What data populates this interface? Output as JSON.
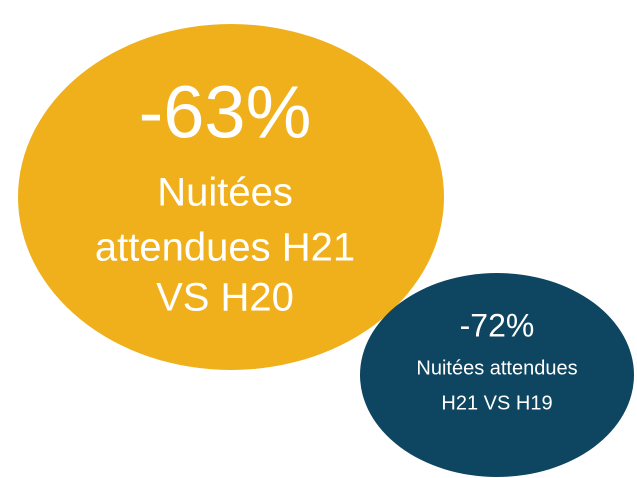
{
  "bubbles": [
    {
      "figure": "-63%",
      "lines": [
        "Nuitées",
        "attendues H21",
        "VS H20"
      ]
    },
    {
      "figure": "-72%",
      "lines": [
        "Nuitées attendues",
        "H21 VS H19"
      ]
    }
  ]
}
